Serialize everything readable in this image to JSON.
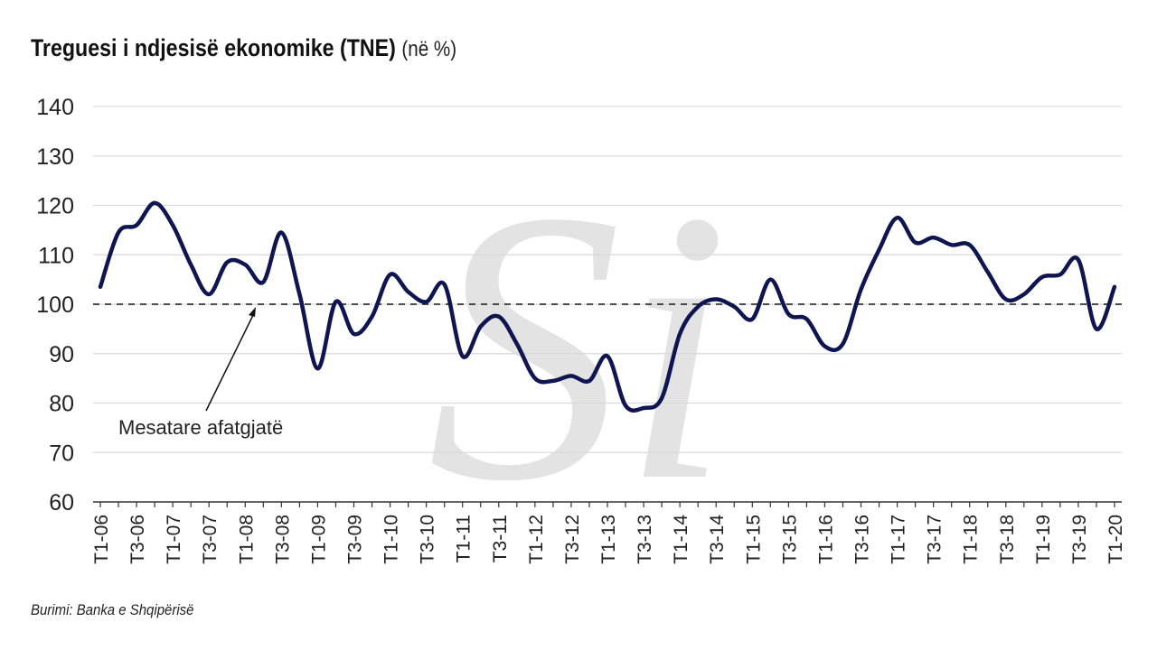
{
  "title": "Treguesi i ndjesisë ekonomike (TNE)",
  "title_unit": "(në %)",
  "source": "Burimi: Banka e Shqipërisë",
  "colors": {
    "line": "#0e1550",
    "grid": "#d9d9d9",
    "reference": "#333333",
    "watermark": "#e3e3e3"
  },
  "chart_data": {
    "type": "line",
    "title": "Treguesi i ndjesisë ekonomike (TNE)",
    "ylim": [
      60,
      140
    ],
    "yticks": [
      60,
      70,
      80,
      90,
      100,
      110,
      120,
      130,
      140
    ],
    "grid": true,
    "x_tick_labels": [
      "T1-06",
      "T3-06",
      "T1-07",
      "T3-07",
      "T1-08",
      "T3-08",
      "T1-09",
      "T3-09",
      "T1-10",
      "T3-10",
      "T1-11",
      "T3-11",
      "T1-12",
      "T3-12",
      "T1-13",
      "T3-13",
      "T1-14",
      "T3-14",
      "T1-15",
      "T3-15",
      "T1-16",
      "T3-16",
      "T1-17",
      "T3-17",
      "T1-18",
      "T3-18",
      "T1-19",
      "T3-19",
      "T1-20"
    ],
    "x": [
      "T1-06",
      "T2-06",
      "T3-06",
      "T4-06",
      "T1-07",
      "T2-07",
      "T3-07",
      "T4-07",
      "T1-08",
      "T2-08",
      "T3-08",
      "T4-08",
      "T1-09",
      "T2-09",
      "T3-09",
      "T4-09",
      "T1-10",
      "T2-10",
      "T3-10",
      "T4-10",
      "T1-11",
      "T2-11",
      "T3-11",
      "T4-11",
      "T1-12",
      "T2-12",
      "T3-12",
      "T4-12",
      "T1-13",
      "T2-13",
      "T3-13",
      "T4-13",
      "T1-14",
      "T2-14",
      "T3-14",
      "T4-14",
      "T1-15",
      "T2-15",
      "T3-15",
      "T4-15",
      "T1-16",
      "T2-16",
      "T3-16",
      "T4-16",
      "T1-17",
      "T2-17",
      "T3-17",
      "T4-17",
      "T1-18",
      "T2-18",
      "T3-18",
      "T4-18",
      "T1-19",
      "T2-19",
      "T3-19",
      "T4-19",
      "T1-20"
    ],
    "series": [
      {
        "values": [
          103.5,
          114.5,
          116,
          120.5,
          116,
          108,
          102,
          108.5,
          108,
          104.5,
          114.5,
          102,
          87,
          100.5,
          94,
          97.5,
          106,
          102.5,
          100.5,
          104,
          89.5,
          95.5,
          97.5,
          92,
          85,
          84.5,
          85.5,
          84.5,
          89.5,
          79.5,
          79,
          81,
          94,
          99.5,
          101,
          99.5,
          97,
          105,
          98,
          97,
          91.5,
          92,
          103,
          111,
          117.5,
          112.5,
          113.5,
          112,
          112,
          106.5,
          101,
          102,
          105.5,
          106,
          109,
          95,
          103.5
        ]
      }
    ],
    "reference_line": {
      "value": 100,
      "style": "dashed"
    },
    "annotations": [
      {
        "text": "Mesatare afatgjatë",
        "points_to": 100
      }
    ],
    "watermark": "Si"
  }
}
